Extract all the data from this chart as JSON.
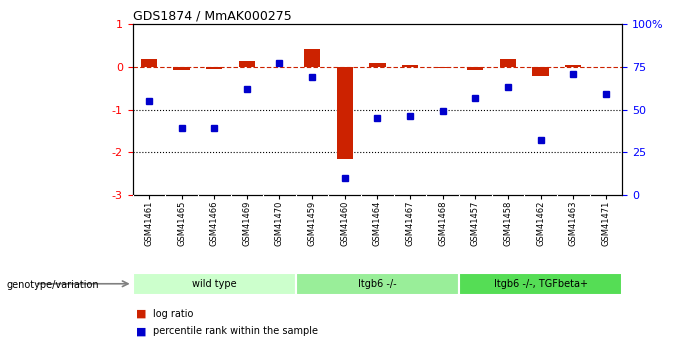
{
  "title": "GDS1874 / MmAK000275",
  "samples": [
    "GSM41461",
    "GSM41465",
    "GSM41466",
    "GSM41469",
    "GSM41470",
    "GSM41459",
    "GSM41460",
    "GSM41464",
    "GSM41467",
    "GSM41468",
    "GSM41457",
    "GSM41458",
    "GSM41462",
    "GSM41463",
    "GSM41471"
  ],
  "log_ratio": [
    0.18,
    -0.07,
    -0.06,
    0.13,
    0.0,
    0.42,
    -2.15,
    0.1,
    0.05,
    -0.03,
    -0.07,
    0.18,
    -0.22,
    0.05,
    0.0
  ],
  "percentile_rank": [
    55,
    39,
    39,
    62,
    77,
    69,
    10,
    45,
    46,
    49,
    57,
    63,
    32,
    71,
    59
  ],
  "groups": [
    {
      "label": "wild type",
      "start": 0,
      "end": 5,
      "color": "#ccffcc"
    },
    {
      "label": "Itgb6 -/-",
      "start": 5,
      "end": 10,
      "color": "#99ee99"
    },
    {
      "label": "Itgb6 -/-, TGFbeta+",
      "start": 10,
      "end": 15,
      "color": "#55dd55"
    }
  ],
  "left_ylim": [
    -3,
    1
  ],
  "left_yticks": [
    -3,
    -2,
    -1,
    0,
    1
  ],
  "right_ylim": [
    0,
    100
  ],
  "right_yticks": [
    0,
    25,
    50,
    75,
    100
  ],
  "right_yticklabels": [
    "0",
    "25",
    "50",
    "75",
    "100%"
  ],
  "bar_color": "#cc2200",
  "dot_color": "#0000cc",
  "dotted_lines": [
    -1,
    -2
  ],
  "legend_items": [
    {
      "label": "log ratio",
      "color": "#cc2200"
    },
    {
      "label": "percentile rank within the sample",
      "color": "#0000cc"
    }
  ],
  "genotype_label": "genotype/variation",
  "background_color": "#ffffff"
}
